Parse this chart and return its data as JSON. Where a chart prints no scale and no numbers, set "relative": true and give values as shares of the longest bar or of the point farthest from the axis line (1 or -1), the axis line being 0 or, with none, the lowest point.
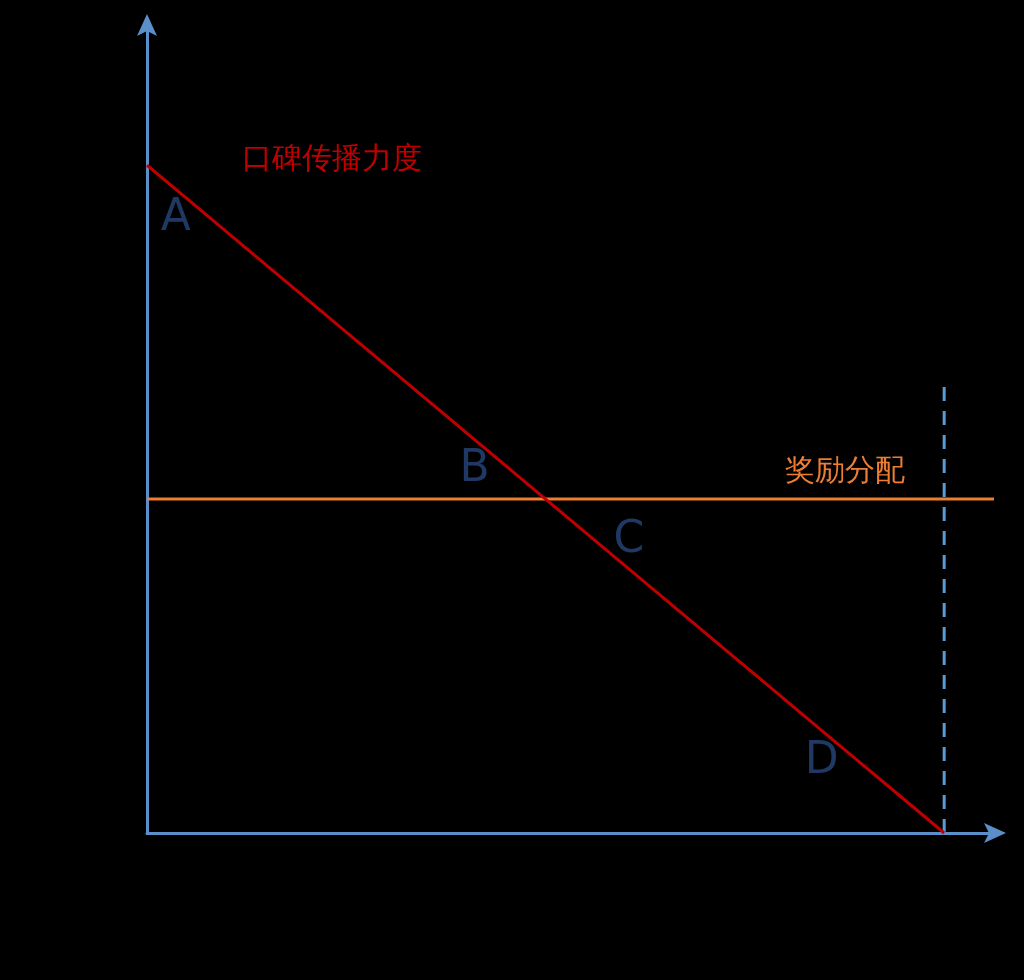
{
  "chart_data": {
    "type": "line",
    "relative": true,
    "grid": false,
    "legend": false,
    "marker": "none",
    "line_style": "solid",
    "categories": [
      null,
      null,
      null,
      null,
      null,
      null,
      null,
      null,
      null,
      null,
      null,
      null,
      null,
      null,
      null,
      null,
      null,
      null
    ],
    "series": [
      {
        "name": "口碑传播力度",
        "color": "#c00000",
        "values": [
          1,
          0.9375,
          0.875,
          0.8125,
          0.75,
          0.6875,
          0.625,
          0.5625,
          0.5,
          0.4375,
          0.375,
          0.3125,
          0.25,
          0.1875,
          0.125,
          0.0625,
          0,
          null
        ]
      },
      {
        "name": "奖励分配",
        "color": "#ed7d31",
        "values": [
          0.5,
          0.5,
          0.5,
          0.5,
          0.5,
          0.5,
          0.5,
          0.5,
          0.5,
          0.5,
          0.5,
          0.5,
          0.5,
          0.5,
          0.5,
          0.5,
          0.5,
          0.5
        ]
      }
    ],
    "annotations": [
      "A",
      "B",
      "C",
      "D"
    ]
  }
}
